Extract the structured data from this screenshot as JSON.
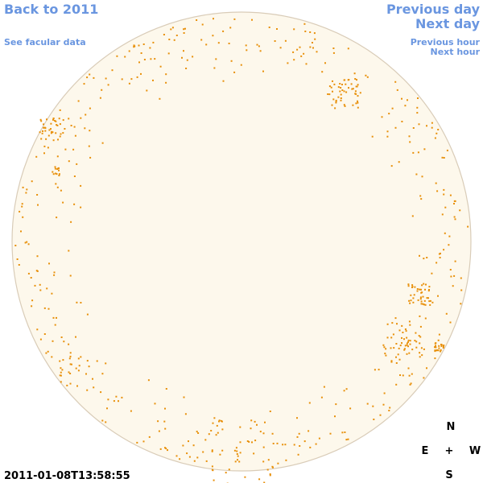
{
  "links": {
    "back": "Back to 2011",
    "facular": "See facular data",
    "previous_day": "Previous day",
    "next_day": "Next day",
    "previous_hour": "Previous hour",
    "next_hour": "Next hour"
  },
  "timestamp": "2011-01-08T13:58:55",
  "compass": {
    "north": "N",
    "east": "E",
    "center": "+",
    "west": "W",
    "south": "S"
  }
}
